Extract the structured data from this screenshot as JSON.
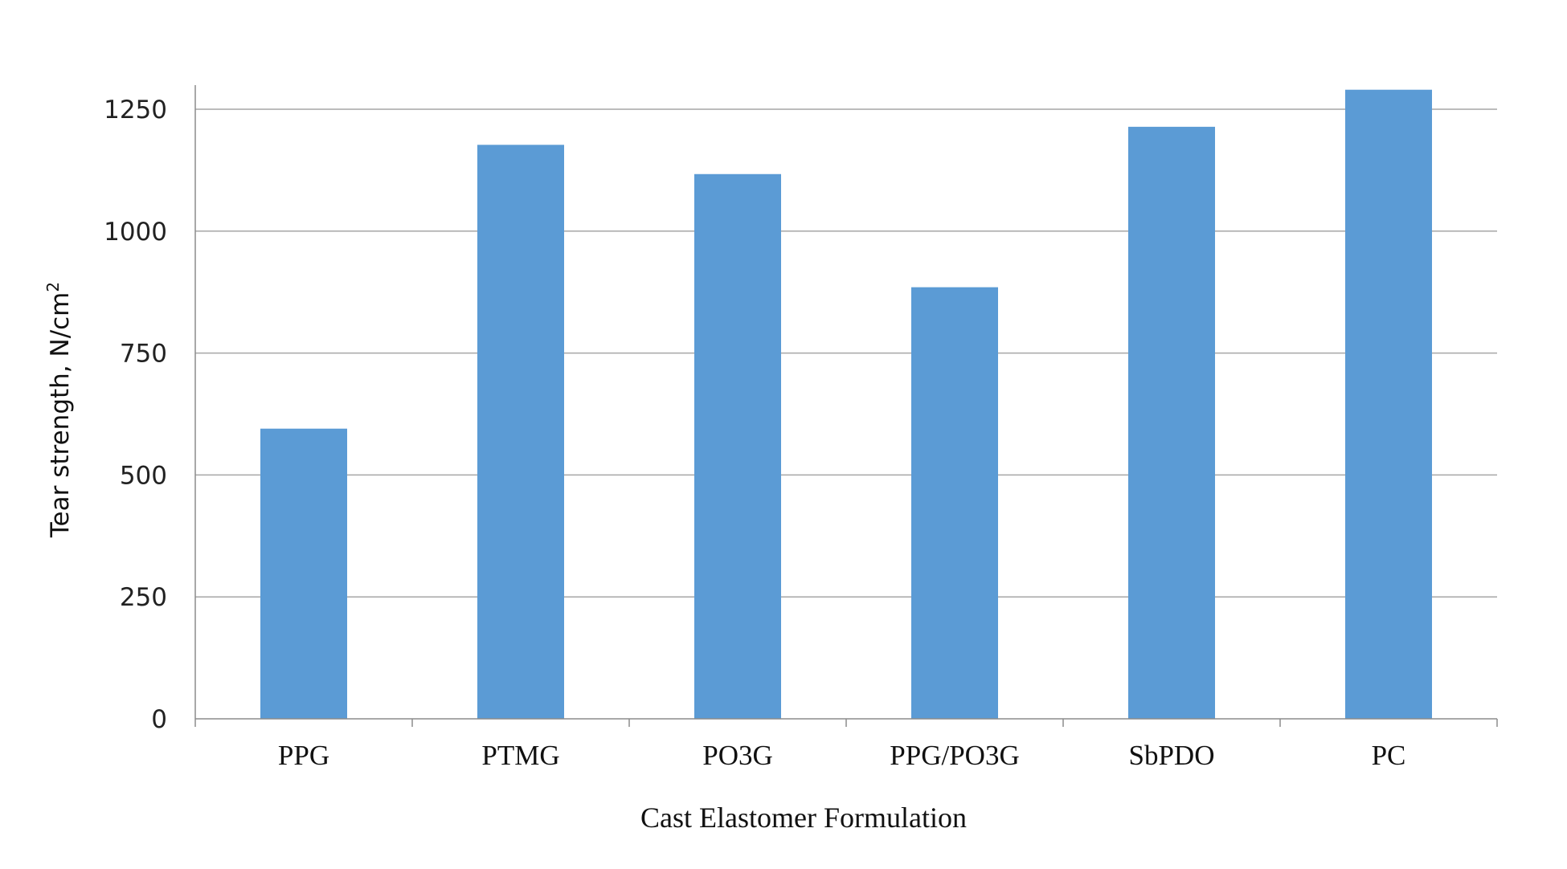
{
  "chart_data": {
    "type": "bar",
    "categories": [
      "PPG",
      "PTMG",
      "PO3G",
      "PPG/PO3G",
      "SbPDO",
      "PC"
    ],
    "series": [
      {
        "values": [
          595,
          1177,
          1117,
          885,
          1214,
          1290
        ],
        "color": "#5B9BD5"
      }
    ],
    "xlabel": "Cast Elastomer Formulation",
    "ylabel": "Tear strength, N/cm",
    "ylabel_superscript": "2",
    "ylim": [
      0,
      1250
    ],
    "yticks": [
      "0",
      "250",
      "500",
      "750",
      "1000",
      "1250"
    ],
    "grid": true,
    "gridline_color": "#A6A6A6",
    "axis_color": "#8C8C8C"
  }
}
